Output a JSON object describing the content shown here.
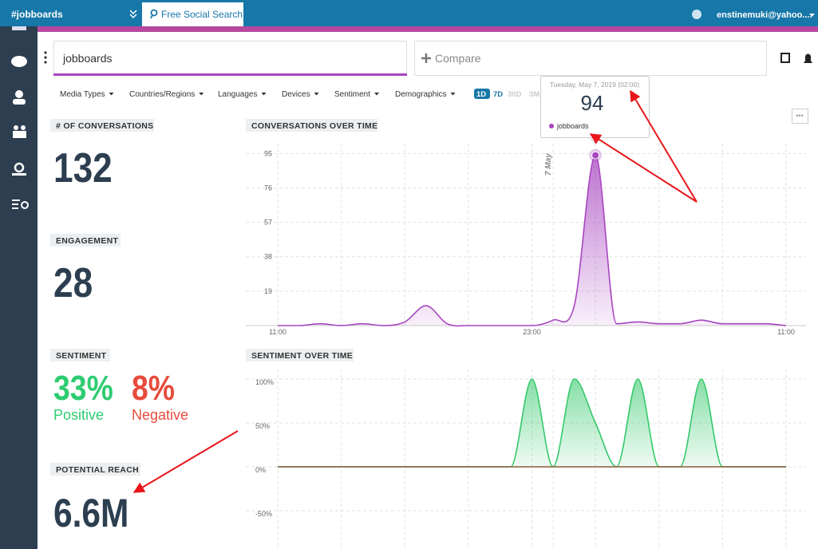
{
  "topbar": {
    "title": "#jobboards",
    "tab": "Free Social Search",
    "user": "enstinemuki@yahoo...."
  },
  "search": {
    "query": "jobboards",
    "compare": "Compare"
  },
  "filters": [
    "Media Types",
    "Countries/Regions",
    "Languages",
    "Devices",
    "Sentiment",
    "Demographics"
  ],
  "ranges": [
    "1D",
    "7D",
    "30D",
    "3M"
  ],
  "stats": {
    "conversations": {
      "label": "# OF CONVERSATIONS",
      "value": 132
    },
    "engagement": {
      "label": "ENGAGEMENT",
      "value": 28
    },
    "sentiment": {
      "label": "SENTIMENT",
      "positive": "33%",
      "positive_label": "Positive",
      "negative": "8%",
      "negative_label": "Negative"
    },
    "reach": {
      "label": "POTENTIAL REACH",
      "value": "6.6M"
    }
  },
  "tooltip": {
    "date": "Tuesday, May 7, 2019 (02:00)"
  },
  "chart_data": [
    {
      "type": "area",
      "title": "CONVERSATIONS OVER TIME",
      "categories": [
        "11:00",
        null,
        null,
        null,
        null,
        null,
        null,
        null,
        null,
        null,
        null,
        null,
        "23:00",
        null,
        null,
        null,
        null,
        null,
        null,
        null,
        null,
        null,
        null,
        null,
        "11:00"
      ],
      "series": [
        {
          "name": "jobboards",
          "color": "#a845c0",
          "values": [
            0,
            0,
            1,
            0,
            1,
            0,
            2,
            11,
            1,
            0,
            0,
            0,
            0,
            3,
            11,
            94,
            1,
            2,
            1,
            1,
            3,
            1,
            1,
            1,
            0
          ]
        }
      ],
      "ylim": [
        0,
        100
      ],
      "yticks": [
        19,
        38,
        57,
        76,
        95
      ],
      "grid": true,
      "annotations": [
        "7 May"
      ]
    },
    {
      "type": "area",
      "title": "SENTIMENT OVER TIME",
      "series": [
        {
          "color": "#34c96a",
          "values": [
            0,
            0,
            0,
            0,
            0,
            0,
            0,
            0,
            0,
            0,
            0,
            0,
            100,
            0,
            100,
            50,
            0,
            100,
            0,
            0,
            100,
            0,
            0,
            0,
            0
          ]
        },
        {
          "color": "#8b5a3c",
          "values": [
            0,
            0,
            0,
            0,
            0,
            0,
            0,
            0,
            0,
            0,
            0,
            0,
            0,
            0,
            0,
            0,
            0,
            0,
            0,
            0,
            0,
            0,
            0,
            0,
            0
          ]
        }
      ],
      "ylim": [
        -90,
        110
      ],
      "yticks": [
        {
          "value": 100,
          "label": "100%"
        },
        {
          "value": 50,
          "label": "50%"
        },
        {
          "value": 0,
          "label": "0%"
        },
        {
          "value": -50,
          "label": "-50%"
        }
      ],
      "grid": true
    }
  ]
}
